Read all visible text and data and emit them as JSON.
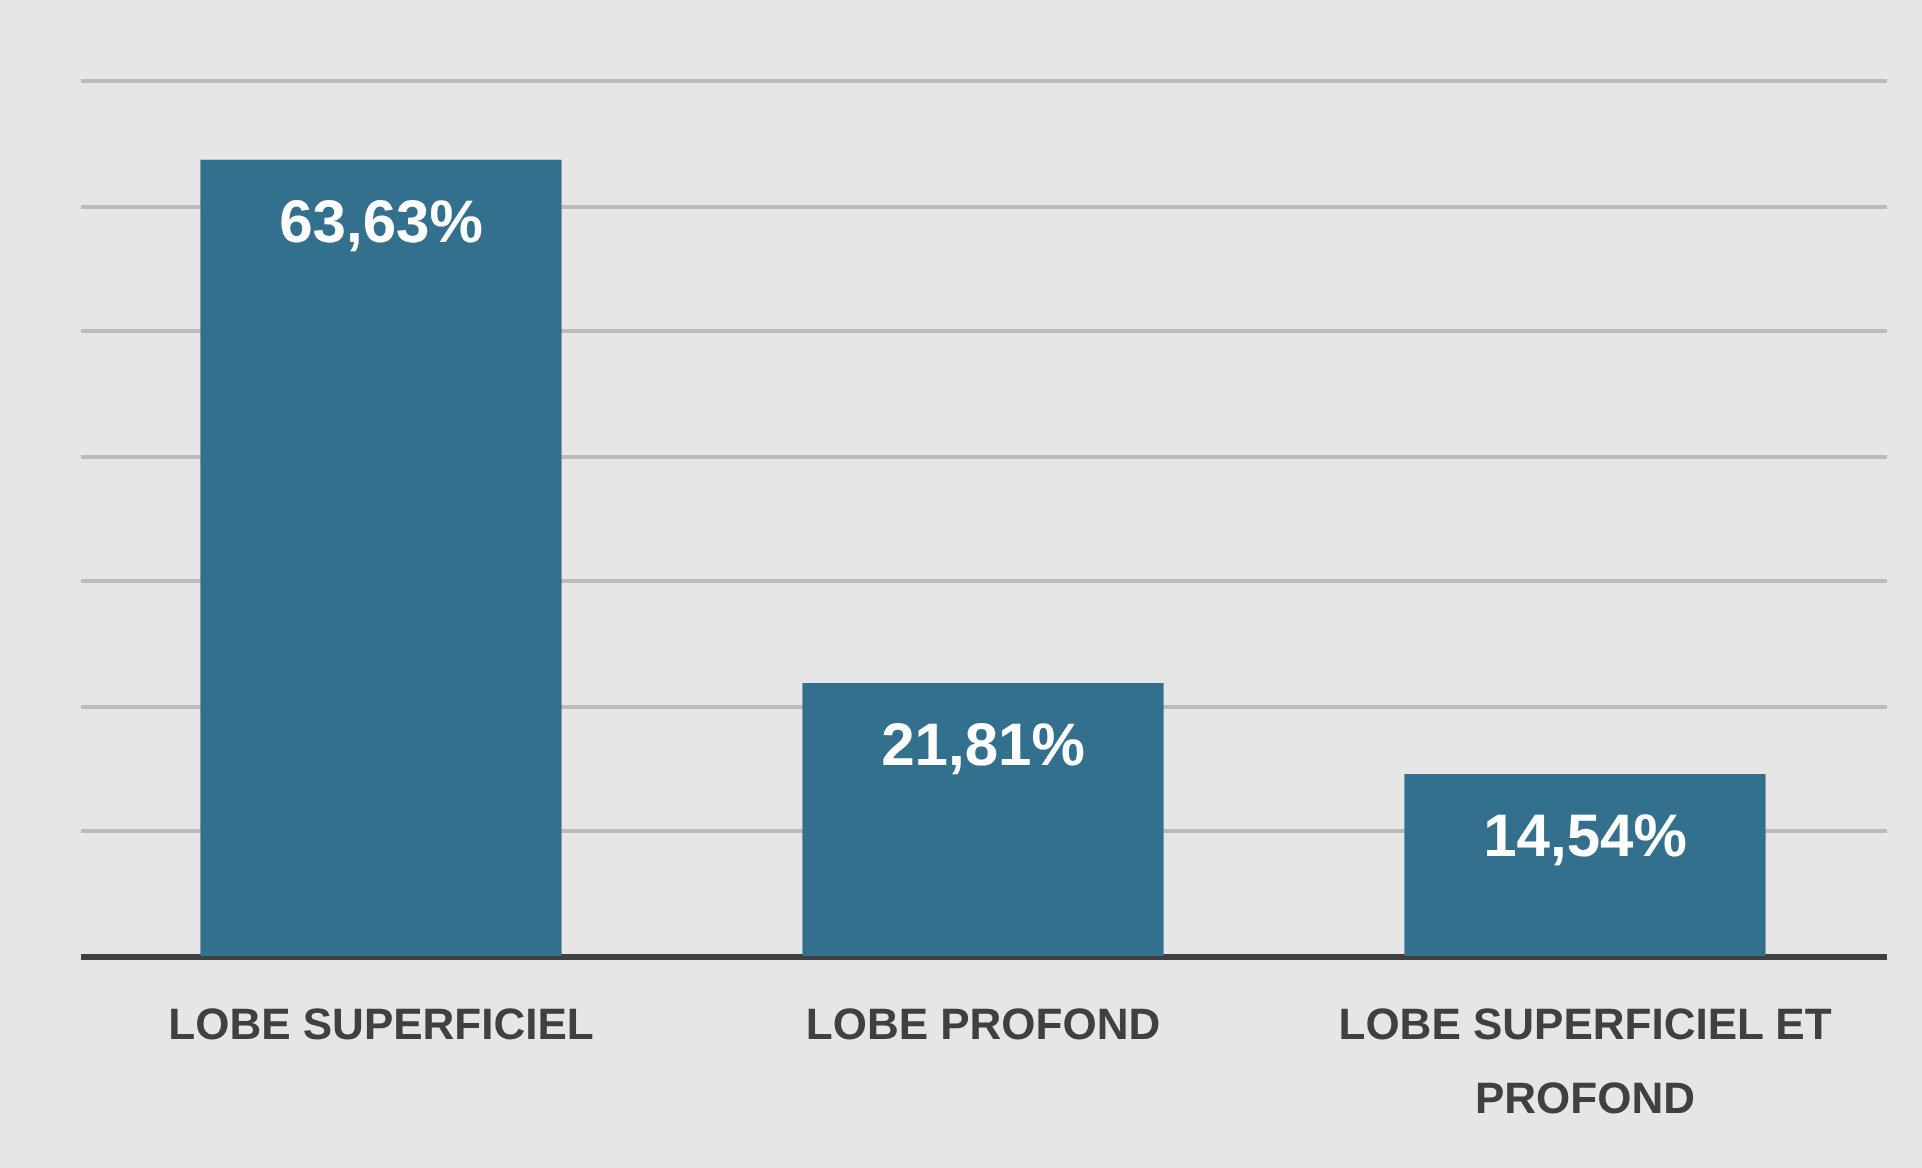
{
  "chart_data": {
    "type": "bar",
    "categories": [
      "LOBE SUPERFICIEL",
      "LOBE PROFOND",
      "LOBE SUPERFICIEL ET PROFOND"
    ],
    "values": [
      63.63,
      21.81,
      14.54
    ],
    "value_labels": [
      "63,63%",
      "21,81%",
      "14,54%"
    ],
    "color": "#33708e",
    "ylim": [
      0,
      70
    ],
    "yticks": [
      {
        "value": 0,
        "label": null
      },
      {
        "value": 10,
        "label": null
      },
      {
        "value": 20,
        "label": null
      },
      {
        "value": 30,
        "label": null
      },
      {
        "value": 40,
        "label": null
      },
      {
        "value": 50,
        "label": null
      },
      {
        "value": 60,
        "label": null
      },
      {
        "value": 70,
        "label": null
      }
    ],
    "grid": "y",
    "tick_labels": "x"
  }
}
